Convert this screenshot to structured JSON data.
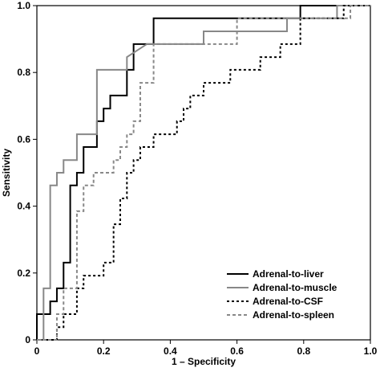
{
  "chart_data": {
    "type": "line",
    "xlabel": "1 – Specificity",
    "ylabel": "Sensitivity",
    "xlim": [
      0,
      1
    ],
    "ylim": [
      0,
      1
    ],
    "xticks": [
      0,
      0.2,
      0.4,
      0.6,
      0.8,
      {
        "value": 1,
        "label": "1.0"
      }
    ],
    "yticks": [
      0,
      0.2,
      0.4,
      0.6,
      0.8,
      {
        "value": 1,
        "label": "1.0"
      }
    ],
    "legend": "lower right",
    "series": [
      {
        "name": "Adrenal-to-liver",
        "color": "#000000",
        "dash": "none",
        "x": [
          0,
          0,
          0.04,
          0.04,
          0.06,
          0.06,
          0.08,
          0.08,
          0.1,
          0.1,
          0.12,
          0.12,
          0.14,
          0.14,
          0.18,
          0.18,
          0.2,
          0.2,
          0.22,
          0.22,
          0.27,
          0.27,
          0.29,
          0.29,
          0.35,
          0.35,
          0.79,
          0.79,
          1
        ],
        "values": [
          0,
          0.077,
          0.077,
          0.115,
          0.115,
          0.154,
          0.154,
          0.231,
          0.231,
          0.462,
          0.462,
          0.5,
          0.5,
          0.577,
          0.577,
          0.654,
          0.654,
          0.692,
          0.692,
          0.731,
          0.731,
          0.808,
          0.808,
          0.885,
          0.885,
          0.962,
          0.962,
          1,
          1
        ]
      },
      {
        "name": "Adrenal-to-muscle",
        "color": "#888888",
        "dash": "none",
        "x": [
          0,
          0.02,
          0.02,
          0.04,
          0.04,
          0.06,
          0.06,
          0.08,
          0.08,
          0.12,
          0.12,
          0.18,
          0.18,
          0.27,
          0.27,
          0.33,
          0.5,
          0.5,
          0.75,
          0.75,
          0.9,
          0.9,
          1
        ],
        "values": [
          0,
          0,
          0.154,
          0.154,
          0.462,
          0.462,
          0.5,
          0.5,
          0.538,
          0.538,
          0.615,
          0.615,
          0.808,
          0.808,
          0.846,
          0.885,
          0.885,
          0.923,
          0.923,
          0.962,
          0.962,
          1,
          1
        ]
      },
      {
        "name": "Adrenal-to-CSF",
        "color": "#000000",
        "dash": "3,3",
        "x": [
          0,
          0.06,
          0.06,
          0.08,
          0.08,
          0.12,
          0.12,
          0.14,
          0.14,
          0.2,
          0.2,
          0.23,
          0.23,
          0.25,
          0.25,
          0.27,
          0.27,
          0.29,
          0.29,
          0.31,
          0.31,
          0.35,
          0.35,
          0.42,
          0.42,
          0.44,
          0.44,
          0.46,
          0.46,
          0.5,
          0.5,
          0.58,
          0.58,
          0.67,
          0.67,
          0.73,
          0.73,
          0.79,
          0.79,
          0.92,
          0.92,
          1
        ],
        "values": [
          0,
          0,
          0.038,
          0.038,
          0.077,
          0.077,
          0.154,
          0.154,
          0.192,
          0.192,
          0.231,
          0.231,
          0.346,
          0.346,
          0.423,
          0.423,
          0.5,
          0.5,
          0.538,
          0.538,
          0.577,
          0.577,
          0.615,
          0.615,
          0.654,
          0.654,
          0.692,
          0.692,
          0.731,
          0.731,
          0.769,
          0.769,
          0.808,
          0.808,
          0.846,
          0.846,
          0.885,
          0.885,
          0.962,
          0.962,
          1,
          1
        ]
      },
      {
        "name": "Adrenal-to-spleen",
        "color": "#888888",
        "dash": "4,3",
        "x": [
          0,
          0.06,
          0.06,
          0.08,
          0.08,
          0.12,
          0.12,
          0.14,
          0.14,
          0.17,
          0.17,
          0.23,
          0.23,
          0.25,
          0.25,
          0.27,
          0.27,
          0.29,
          0.29,
          0.31,
          0.31,
          0.35,
          0.35,
          0.6,
          0.6,
          0.94,
          0.94,
          1
        ],
        "values": [
          0,
          0,
          0.077,
          0.077,
          0.154,
          0.154,
          0.385,
          0.385,
          0.462,
          0.462,
          0.5,
          0.5,
          0.538,
          0.538,
          0.577,
          0.577,
          0.615,
          0.615,
          0.654,
          0.654,
          0.769,
          0.769,
          0.885,
          0.885,
          0.962,
          0.962,
          1,
          1
        ]
      }
    ]
  }
}
